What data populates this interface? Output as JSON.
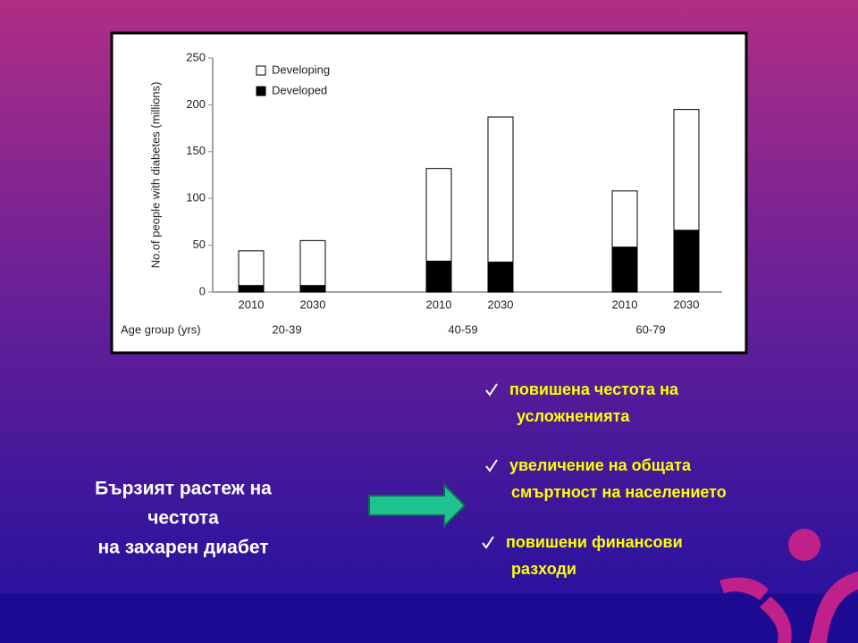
{
  "chart_data": {
    "type": "stacked-bar",
    "ylabel": "No.of people with diabetes (millions)",
    "xlabel": "Age group (yrs)",
    "categories": [
      "2010",
      "2030",
      "2010",
      "2030",
      "2010",
      "2030"
    ],
    "groups": [
      "20-39",
      "40-59",
      "60-79"
    ],
    "series": [
      {
        "name": "Developed",
        "color": "#000000",
        "values": [
          7,
          7,
          33,
          32,
          48,
          66
        ]
      },
      {
        "name": "Developing",
        "color": "#ffffff",
        "values": [
          37,
          48,
          99,
          155,
          60,
          129
        ]
      }
    ],
    "ylim": [
      0,
      250
    ],
    "yticks": [
      0,
      50,
      100,
      150,
      200,
      250
    ]
  },
  "slide": {
    "left_text": [
      "Бързият растеж на",
      "честота",
      "на захарен диабет"
    ],
    "bullets": [
      [
        "повишена честота на",
        "усложненията"
      ],
      [
        "увеличение на общата",
        "смъртност на населението"
      ],
      [
        "повишени финансови",
        "разходи"
      ]
    ]
  }
}
